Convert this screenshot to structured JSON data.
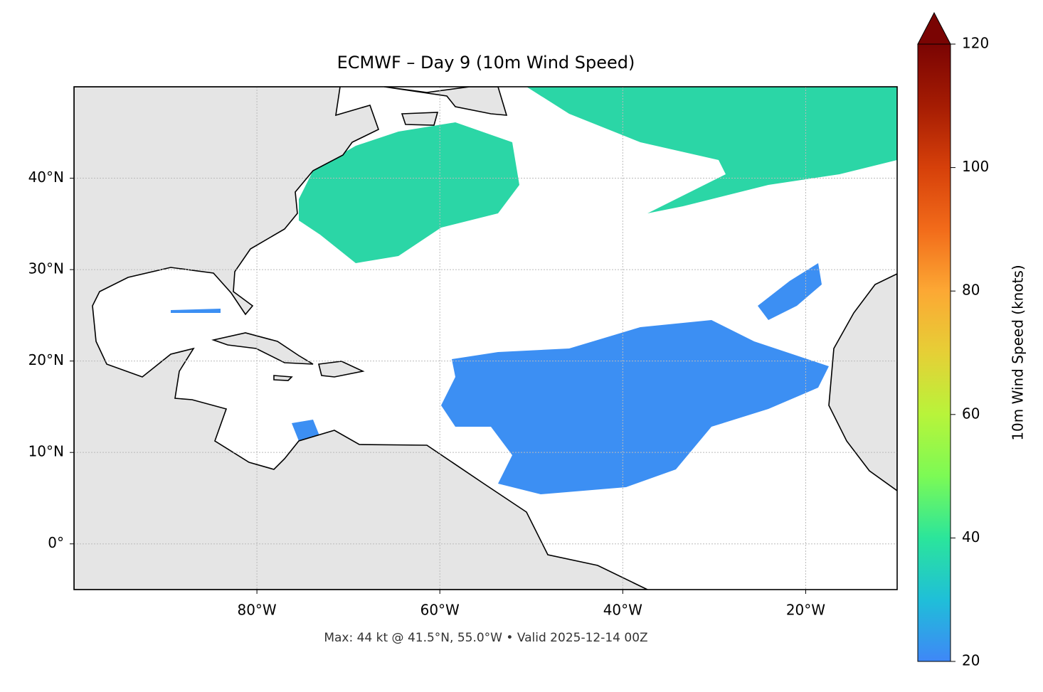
{
  "map": {
    "title": "ECMWF – Day 9 (10m Wind Speed)",
    "lonlim": [
      -100,
      -10
    ],
    "latlim": [
      -5,
      50
    ],
    "lonticks": [
      {
        "value": -80,
        "label": "80°W"
      },
      {
        "value": -60,
        "label": "60°W"
      },
      {
        "value": -40,
        "label": "40°W"
      },
      {
        "value": -20,
        "label": "20°W"
      }
    ],
    "latticks": [
      {
        "value": 0,
        "label": "0°"
      },
      {
        "value": 10,
        "label": "10°N"
      },
      {
        "value": 20,
        "label": "20°N"
      },
      {
        "value": 30,
        "label": "30°N"
      },
      {
        "value": 40,
        "label": "40°N"
      }
    ],
    "grid": true,
    "colorbar": {
      "label": "10m Wind Speed (knots)",
      "lim": [
        20,
        120
      ],
      "ticks": [
        20,
        40,
        60,
        80,
        100,
        120
      ]
    },
    "footer": "Max: 44 kt @ 41.5°N, 55.0°W • Valid 2025-12-14 00Z"
  }
}
